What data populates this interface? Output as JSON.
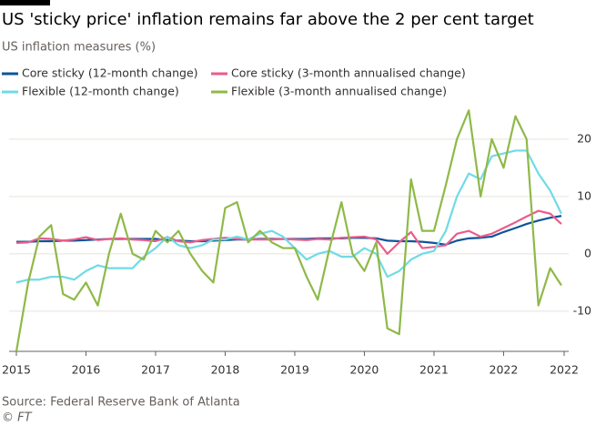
{
  "chart_data": {
    "type": "line",
    "title": "US 'sticky price' inflation remains far above the 2 per cent target",
    "subtitle": "US inflation measures (%)",
    "source": "Source: Federal Reserve Bank of Atlanta",
    "credit": "© FT",
    "x": [
      2015,
      2015.17,
      2015.33,
      2015.5,
      2015.67,
      2015.83,
      2016,
      2016.17,
      2016.33,
      2016.5,
      2016.67,
      2016.83,
      2017,
      2017.17,
      2017.33,
      2017.5,
      2017.67,
      2017.83,
      2018,
      2018.17,
      2018.33,
      2018.5,
      2018.67,
      2018.83,
      2019,
      2019.17,
      2019.33,
      2019.5,
      2019.67,
      2019.83,
      2020,
      2020.17,
      2020.33,
      2020.5,
      2020.67,
      2020.83,
      2021,
      2021.17,
      2021.33,
      2021.5,
      2021.67,
      2021.83,
      2022,
      2022.17,
      2022.33,
      2022.5,
      2022.67,
      2022.83
    ],
    "series": [
      {
        "name": "Core sticky (12-month change)",
        "color": "#0f5499",
        "values": [
          2.1,
          2.1,
          2.2,
          2.2,
          2.3,
          2.3,
          2.4,
          2.5,
          2.6,
          2.6,
          2.6,
          2.6,
          2.6,
          2.4,
          2.3,
          2.2,
          2.2,
          2.3,
          2.4,
          2.5,
          2.5,
          2.6,
          2.6,
          2.6,
          2.6,
          2.6,
          2.7,
          2.7,
          2.7,
          2.8,
          2.8,
          2.7,
          2.3,
          2.2,
          2.2,
          2.1,
          1.9,
          1.6,
          2.3,
          2.7,
          2.8,
          3.0,
          3.8,
          4.5,
          5.2,
          5.8,
          6.3,
          6.6
        ]
      },
      {
        "name": "Core sticky (3-month annualised change)",
        "color": "#e95d8c",
        "values": [
          1.9,
          2.0,
          2.7,
          2.6,
          2.3,
          2.5,
          2.9,
          2.4,
          2.6,
          2.7,
          2.5,
          2.4,
          2.2,
          2.9,
          2.2,
          2.0,
          2.4,
          2.6,
          2.8,
          2.6,
          2.5,
          2.5,
          2.5,
          2.6,
          2.5,
          2.4,
          2.6,
          2.5,
          2.8,
          2.9,
          3.0,
          2.5,
          0.0,
          2.0,
          3.8,
          1.0,
          1.2,
          1.5,
          3.5,
          4.0,
          3.0,
          3.5,
          4.5,
          5.5,
          6.5,
          7.5,
          7.0,
          5.2
        ]
      },
      {
        "name": "Flexible (12-month change)",
        "color": "#6fdbe6",
        "values": [
          -5,
          -4.5,
          -4.5,
          -4,
          -4,
          -4.5,
          -3,
          -2,
          -2.5,
          -2.5,
          -2.5,
          -0.5,
          1,
          3,
          1.5,
          1,
          1.5,
          2.5,
          2.5,
          3,
          2.5,
          3.5,
          4,
          3,
          1,
          -1,
          0,
          0.5,
          -0.5,
          -0.5,
          1,
          0,
          -4,
          -3,
          -1,
          0,
          0.5,
          4,
          10,
          14,
          13,
          17,
          17.5,
          18,
          18,
          14,
          11,
          7
        ]
      },
      {
        "name": "Flexible (3-month annualised change)",
        "color": "#8fb948",
        "values": [
          -17,
          -5,
          3,
          5,
          -7,
          -8,
          -5,
          -9,
          0,
          7,
          0,
          -1,
          4,
          2,
          4,
          0,
          -3,
          -5,
          8,
          9,
          2,
          4,
          2,
          1,
          1,
          -4,
          -8,
          1,
          9,
          0,
          -3,
          2,
          -13,
          -14,
          13,
          4,
          4,
          12,
          20,
          25,
          10,
          20,
          15,
          24,
          20,
          -9,
          -2.5,
          -5.5
        ]
      }
    ],
    "xlim": [
      2015,
      2022.87
    ],
    "xticks": [
      2015,
      2016,
      2017,
      2018,
      2019,
      2020,
      2021,
      2022,
      {
        "value": 2022.87,
        "label": "2022"
      }
    ],
    "ylim": [
      -17,
      26
    ],
    "yticks": [
      -10,
      0,
      10,
      20
    ],
    "grid": true
  }
}
